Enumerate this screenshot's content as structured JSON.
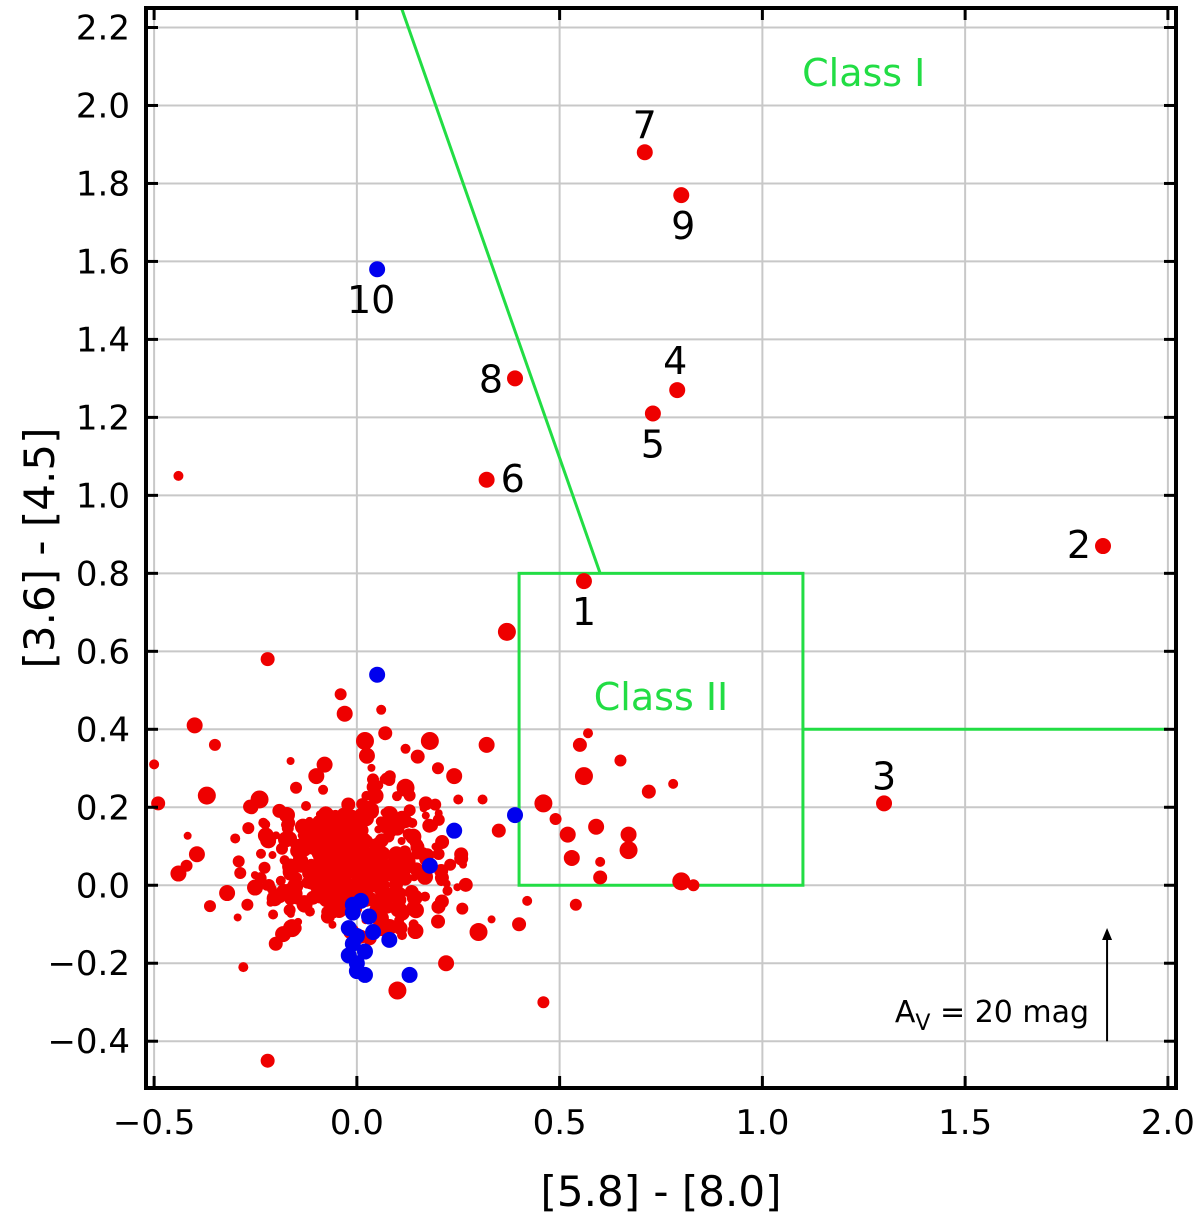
{
  "chart_data": {
    "type": "scatter",
    "xlabel": "[5.8] - [8.0]",
    "ylabel": "[3.6] - [4.5]",
    "xlim": [
      -0.52,
      2.02
    ],
    "ylim": [
      -0.52,
      2.25
    ],
    "x_ticks": [
      -0.5,
      0.0,
      0.5,
      1.0,
      1.5,
      2.0
    ],
    "x_tick_labels": [
      "−0.5",
      "0.0",
      "0.5",
      "1.0",
      "1.5",
      "2.0"
    ],
    "y_ticks": [
      -0.4,
      -0.2,
      0.0,
      0.2,
      0.4,
      0.6,
      0.8,
      1.0,
      1.2,
      1.4,
      1.6,
      1.8,
      2.0,
      2.2
    ],
    "y_tick_labels": [
      "−0.4",
      "−0.2",
      "0.0",
      "0.2",
      "0.4",
      "0.6",
      "0.8",
      "1.0",
      "1.2",
      "1.4",
      "1.6",
      "1.8",
      "2.0",
      "2.2"
    ],
    "grid": true,
    "colors": {
      "red": "#ee0000",
      "blue": "#0000ee",
      "region": "#22dd44",
      "grid": "#c8c8c8"
    },
    "regions": {
      "class_i_label": "Class I",
      "class_ii_label": "Class II",
      "class_ii_box": {
        "x": [
          0.4,
          1.1
        ],
        "y": [
          0.0,
          0.8
        ]
      },
      "class_i_line": [
        [
          0.11,
          2.25
        ],
        [
          0.6,
          0.8
        ]
      ],
      "extension_line": [
        [
          1.1,
          0.4
        ],
        [
          2.0,
          0.4
        ]
      ]
    },
    "reddening_vector": {
      "label": "A",
      "label_sub": "V",
      "label_rest": " = 20 mag",
      "x": 1.85,
      "y0": -0.4,
      "y1": -0.12
    },
    "labeled_points": [
      {
        "label": "1",
        "x": 0.56,
        "y": 0.78,
        "color": "red"
      },
      {
        "label": "2",
        "x": 1.84,
        "y": 0.87,
        "color": "red"
      },
      {
        "label": "3",
        "x": 1.3,
        "y": 0.21,
        "color": "red"
      },
      {
        "label": "4",
        "x": 0.79,
        "y": 1.27,
        "color": "red"
      },
      {
        "label": "5",
        "x": 0.73,
        "y": 1.21,
        "color": "red"
      },
      {
        "label": "6",
        "x": 0.32,
        "y": 1.04,
        "color": "red"
      },
      {
        "label": "7",
        "x": 0.71,
        "y": 1.88,
        "color": "red"
      },
      {
        "label": "8",
        "x": 0.39,
        "y": 1.3,
        "color": "red"
      },
      {
        "label": "9",
        "x": 0.8,
        "y": 1.77,
        "color": "red"
      },
      {
        "label": "10",
        "x": 0.05,
        "y": 1.58,
        "color": "blue"
      }
    ],
    "red_points": [
      [
        -0.44,
        1.05
      ],
      [
        -0.22,
        0.58
      ],
      [
        0.37,
        0.65
      ],
      [
        -0.04,
        0.49
      ],
      [
        -0.03,
        0.44
      ],
      [
        0.06,
        0.45
      ],
      [
        0.07,
        0.39
      ],
      [
        0.02,
        0.37
      ],
      [
        -0.35,
        0.36
      ],
      [
        -0.4,
        0.41
      ],
      [
        -0.5,
        0.31
      ],
      [
        -0.49,
        0.21
      ],
      [
        -0.37,
        0.23
      ],
      [
        -0.42,
        0.05
      ],
      [
        -0.44,
        0.03
      ],
      [
        -0.28,
        -0.21
      ],
      [
        -0.22,
        -0.45
      ],
      [
        0.1,
        -0.27
      ],
      [
        0.46,
        -0.3
      ],
      [
        0.32,
        0.36
      ],
      [
        0.31,
        0.22
      ],
      [
        0.35,
        0.14
      ],
      [
        0.46,
        0.21
      ],
      [
        0.49,
        0.17
      ],
      [
        0.52,
        0.13
      ],
      [
        0.57,
        0.39
      ],
      [
        0.55,
        0.36
      ],
      [
        0.56,
        0.28
      ],
      [
        0.65,
        0.32
      ],
      [
        0.59,
        0.15
      ],
      [
        0.6,
        0.06
      ],
      [
        0.6,
        0.02
      ],
      [
        0.67,
        0.09
      ],
      [
        0.54,
        -0.05
      ],
      [
        0.53,
        0.07
      ],
      [
        0.78,
        0.26
      ],
      [
        0.72,
        0.24
      ],
      [
        0.8,
        0.01
      ],
      [
        0.83,
        0.0
      ],
      [
        0.67,
        0.13
      ],
      [
        0.42,
        -0.04
      ],
      [
        0.4,
        -0.1
      ],
      [
        0.3,
        -0.12
      ],
      [
        0.26,
        -0.06
      ],
      [
        0.22,
        -0.2
      ],
      [
        0.14,
        -0.1
      ],
      [
        -0.2,
        -0.15
      ],
      [
        -0.16,
        -0.11
      ],
      [
        -0.27,
        -0.05
      ],
      [
        -0.32,
        -0.02
      ],
      [
        -0.3,
        0.12
      ],
      [
        -0.26,
        0.2
      ],
      [
        -0.24,
        0.22
      ],
      [
        -0.15,
        0.25
      ],
      [
        -0.1,
        0.28
      ],
      [
        0.12,
        0.35
      ],
      [
        0.15,
        0.33
      ],
      [
        0.18,
        0.37
      ],
      [
        0.2,
        0.3
      ],
      [
        0.24,
        0.28
      ],
      [
        0.25,
        0.22
      ],
      [
        0.17,
        0.21
      ],
      [
        0.12,
        0.25
      ],
      [
        0.08,
        0.27
      ]
    ],
    "blue_points": [
      [
        0.05,
        0.54
      ],
      [
        0.39,
        0.18
      ],
      [
        0.24,
        0.14
      ],
      [
        0.18,
        0.05
      ],
      [
        0.13,
        -0.23
      ],
      [
        0.08,
        -0.14
      ],
      [
        0.04,
        -0.12
      ],
      [
        0.02,
        -0.17
      ],
      [
        -0.01,
        -0.05
      ],
      [
        -0.01,
        -0.07
      ],
      [
        0.01,
        -0.04
      ],
      [
        0.0,
        -0.13
      ],
      [
        -0.01,
        -0.15
      ],
      [
        0.0,
        -0.2
      ],
      [
        0.0,
        -0.22
      ],
      [
        0.02,
        -0.23
      ],
      [
        -0.02,
        -0.18
      ],
      [
        0.03,
        -0.08
      ],
      [
        -0.02,
        -0.11
      ]
    ]
  }
}
